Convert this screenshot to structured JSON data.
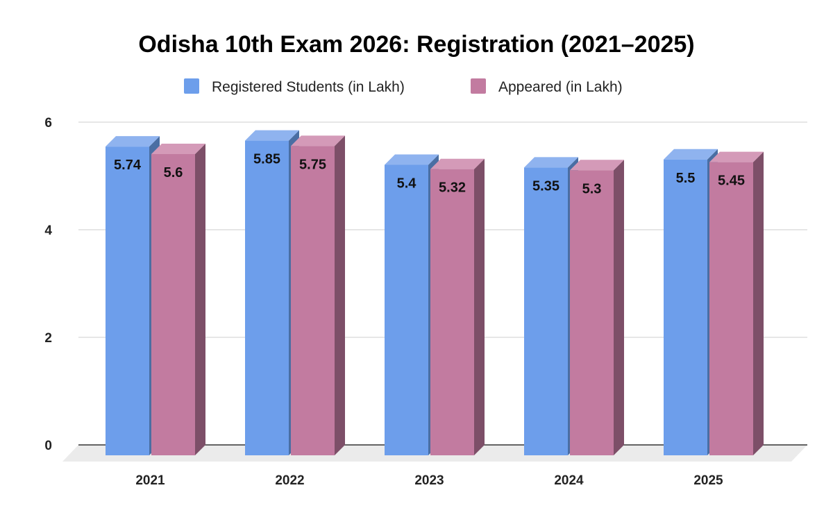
{
  "chart_data": {
    "type": "bar",
    "title": "Odisha 10th Exam 2026: Registration (2021–2025)",
    "categories": [
      "2021",
      "2022",
      "2023",
      "2024",
      "2025"
    ],
    "series": [
      {
        "name": "Registered Students (in Lakh)",
        "values": [
          5.74,
          5.85,
          5.4,
          5.35,
          5.5
        ],
        "color": "#6d9eeb",
        "top_color": "#8fb3ef",
        "side_color": "#4a6ea3"
      },
      {
        "name": "Appeared (in Lakh)",
        "values": [
          5.6,
          5.75,
          5.32,
          5.3,
          5.45
        ],
        "color": "#c27ba0",
        "top_color": "#d49ab8",
        "side_color": "#7d4f68"
      }
    ],
    "yticks": [
      "0",
      "2",
      "4",
      "6"
    ],
    "ylim": [
      0,
      6
    ],
    "grid": true,
    "legend_position": "top",
    "data_labels": true,
    "style": "3d"
  }
}
